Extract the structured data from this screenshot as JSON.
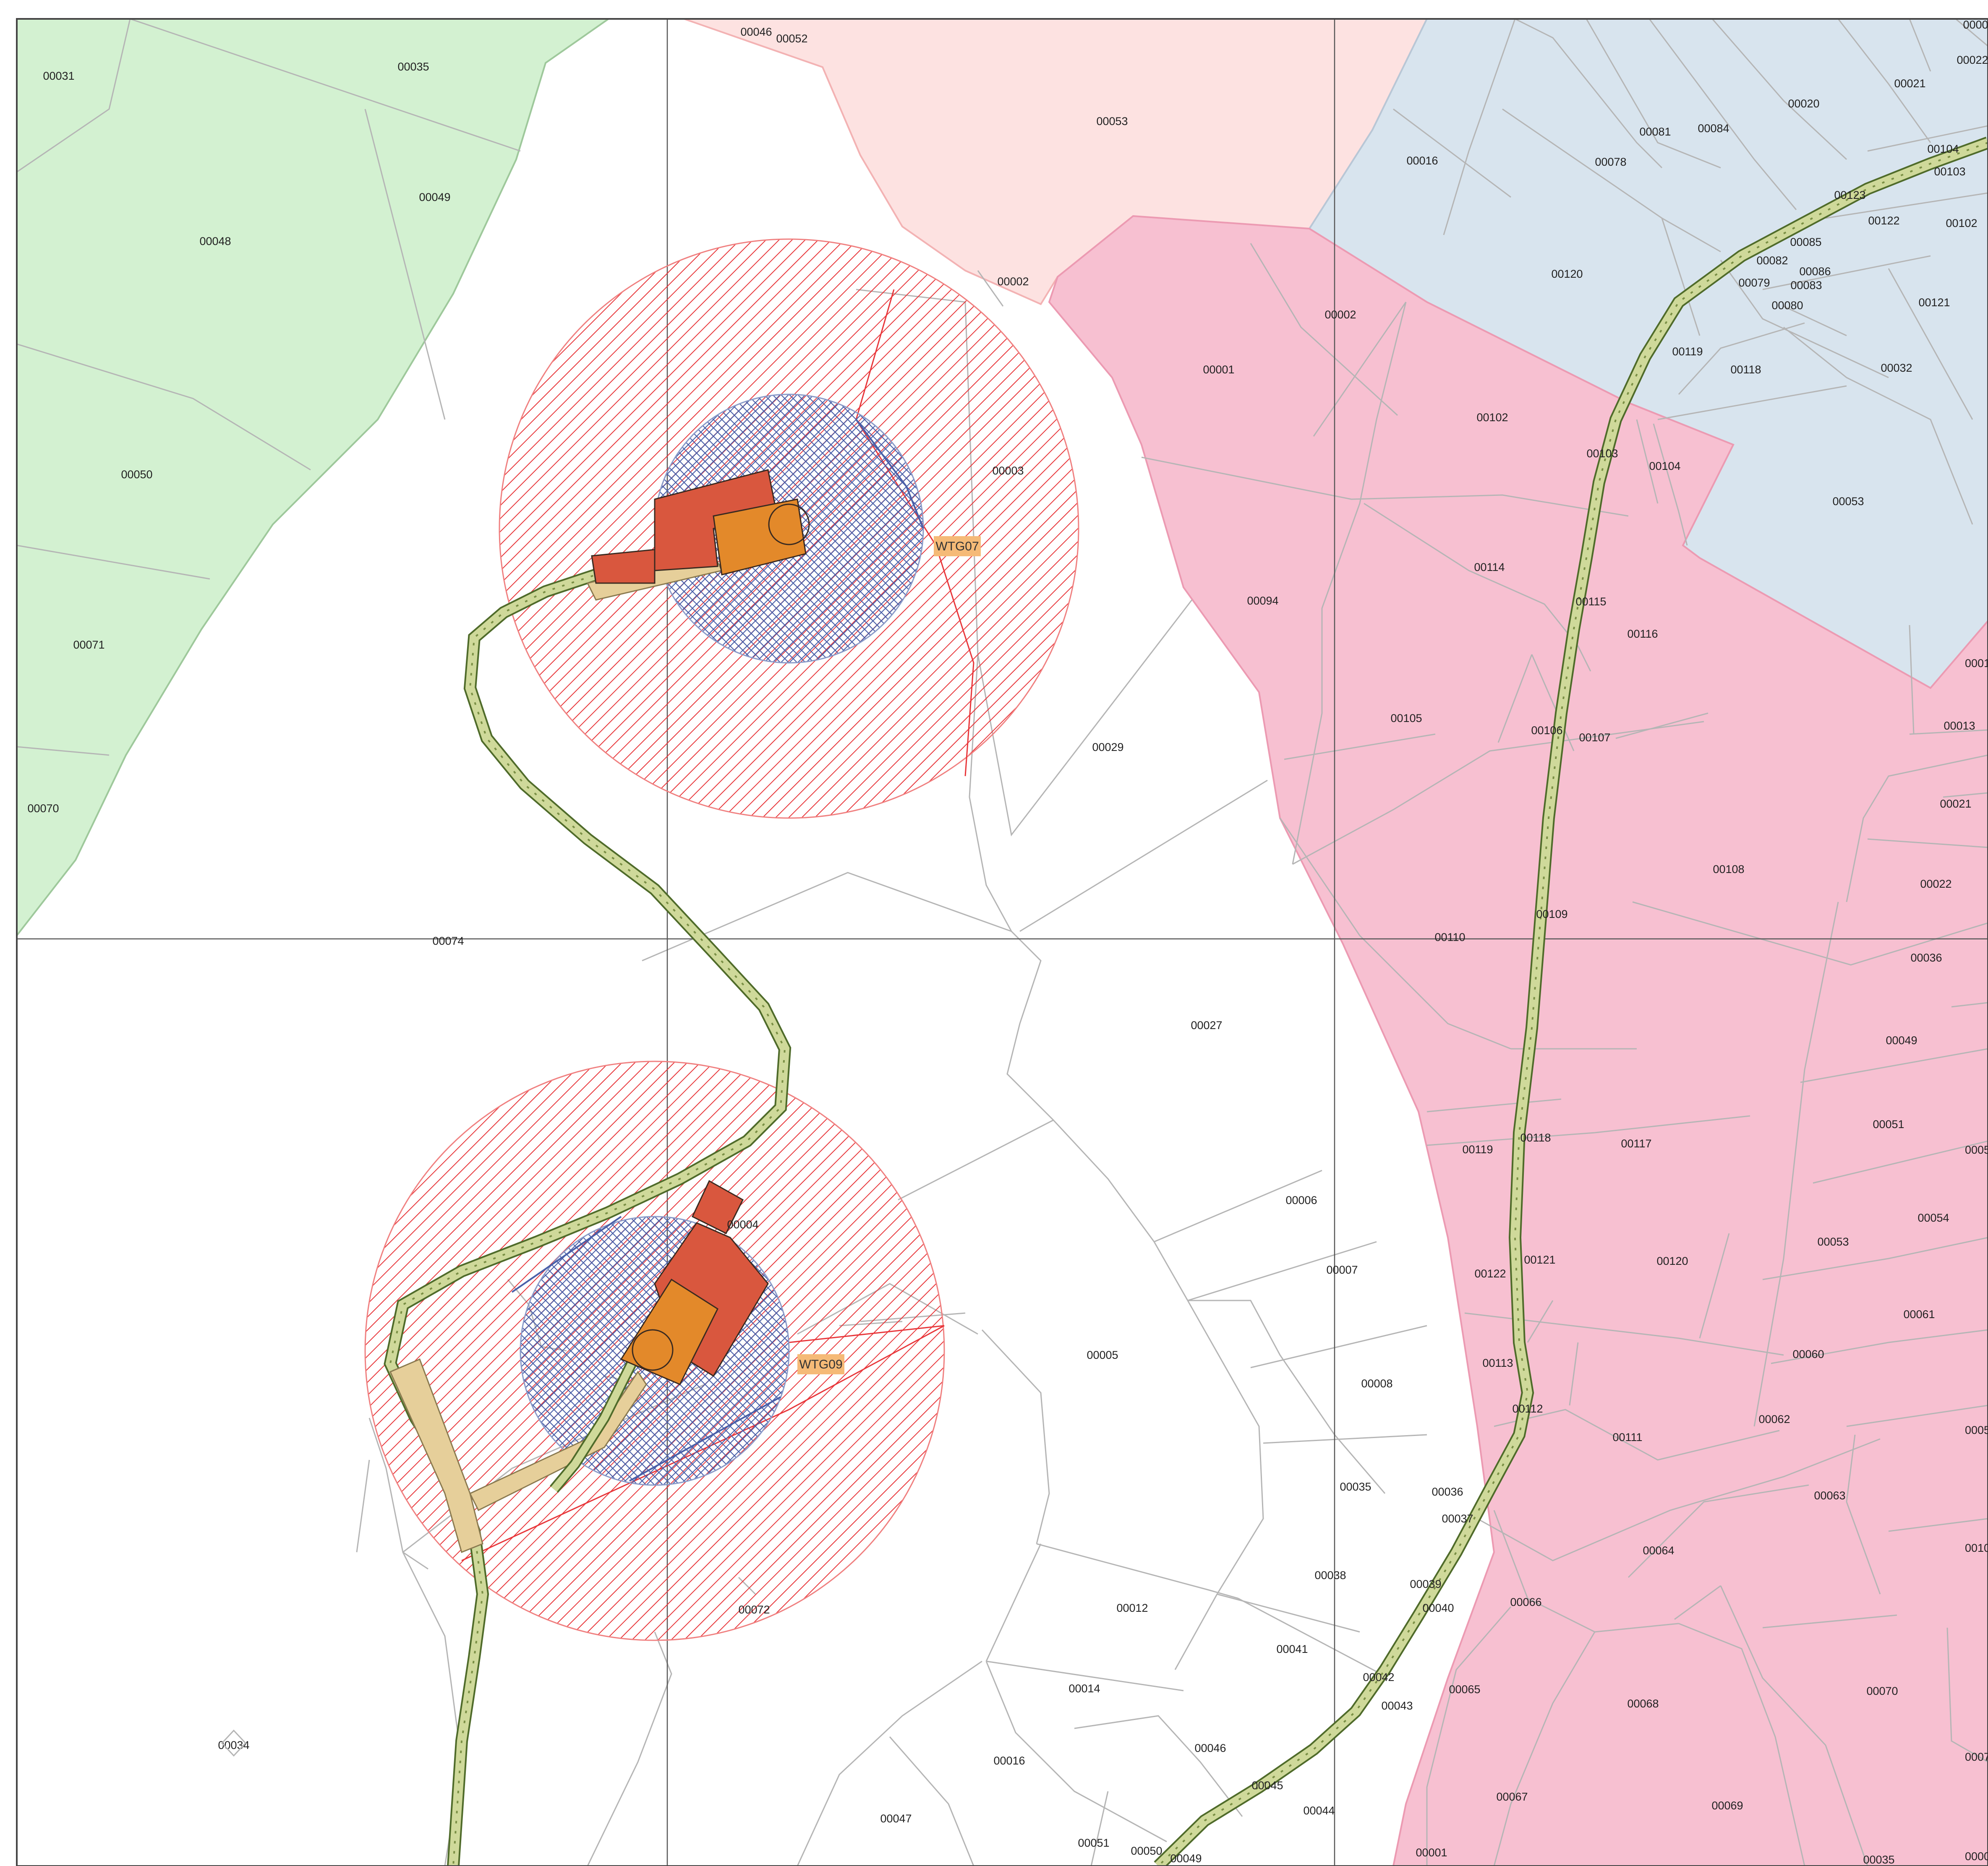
{
  "colors": {
    "zone_green": "#d3f1d1",
    "zone_salmon": "#fde2e1",
    "zone_blue": "#d8e4ee",
    "zone_pink": "#f7c0d1",
    "buffer_red": "#e8363a",
    "buffer_blue": "#4a5fa8",
    "platform_red": "#d9573e",
    "platform_orange": "#e3892a",
    "road_fill": "#cfd99a",
    "road_edge": "#4f6b2a",
    "turbine_label_bg": "#f5ba77"
  },
  "turbines": [
    {
      "id": "WTG07"
    },
    {
      "id": "WTG09"
    }
  ],
  "parcels": {
    "green": [
      "00031",
      "00035",
      "00049",
      "00048",
      "00050",
      "00071",
      "00070"
    ],
    "salmon": [
      "00046",
      "00052",
      "00053",
      "00002"
    ],
    "blue": [
      "00002",
      "00022",
      "00021",
      "00020",
      "00084",
      "00081",
      "00078",
      "00016",
      "00104",
      "00103",
      "00123",
      "00122",
      "00102",
      "00085",
      "00082",
      "00079",
      "00086",
      "00083",
      "00080",
      "00120",
      "00121",
      "00119",
      "00118",
      "00032",
      "00053"
    ],
    "pink": [
      "00002",
      "00001",
      "00102",
      "00103",
      "00104",
      "00094",
      "00114",
      "00115",
      "00116",
      "00105",
      "00106",
      "00107",
      "00108",
      "00109",
      "00110",
      "00118",
      "00119",
      "00117",
      "00121",
      "00122",
      "00120",
      "00113",
      "00112",
      "00111",
      "00064",
      "00066",
      "00065",
      "00068",
      "00067",
      "00069",
      "00070",
      "00035",
      "00001",
      "0001",
      "00013",
      "00021",
      "00022",
      "00036",
      "00049",
      "00051",
      "0005",
      "00054",
      "00053",
      "00061",
      "00060",
      "00062",
      "0005",
      "00063",
      "0010",
      "0007",
      "0000"
    ],
    "white": [
      "00003",
      "00029",
      "00074",
      "00027",
      "00006",
      "00007",
      "00005",
      "00008",
      "00004",
      "00035",
      "00036",
      "00037",
      "00038",
      "00039",
      "00040",
      "00012",
      "00041",
      "00042",
      "00043",
      "00014",
      "00046",
      "00045",
      "00044",
      "00016",
      "00047",
      "00051",
      "00050",
      "00049",
      "00072",
      "00034"
    ]
  }
}
